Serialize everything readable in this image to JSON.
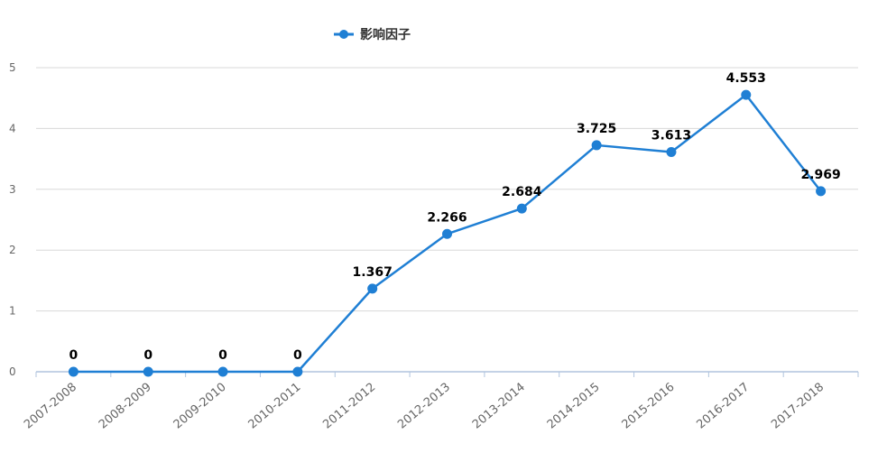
{
  "chart_data": {
    "type": "line",
    "categories": [
      "2007-2008",
      "2008-2009",
      "2009-2010",
      "2010-2011",
      "2011-2012",
      "2012-2013",
      "2013-2014",
      "2014-2015",
      "2015-2016",
      "2016-2017",
      "2017-2018"
    ],
    "series": [
      {
        "name": "影响因子",
        "values": [
          0,
          0,
          0,
          0,
          1.367,
          2.266,
          2.684,
          3.725,
          3.613,
          4.553,
          2.969
        ],
        "labels": [
          "0",
          "0",
          "0",
          "0",
          "1.367",
          "2.266",
          "2.684",
          "3.725",
          "3.613",
          "4.553",
          "2.969"
        ],
        "color": "#1f7fd4"
      }
    ],
    "yticks": [
      "0",
      "1",
      "2",
      "3",
      "4",
      "5"
    ],
    "ylim": [
      0,
      5
    ],
    "grid": true,
    "legend_position": "top-left",
    "colors": {
      "axis": "#b0c4de",
      "grid": "#d8d8d8",
      "text": "#666666"
    }
  }
}
